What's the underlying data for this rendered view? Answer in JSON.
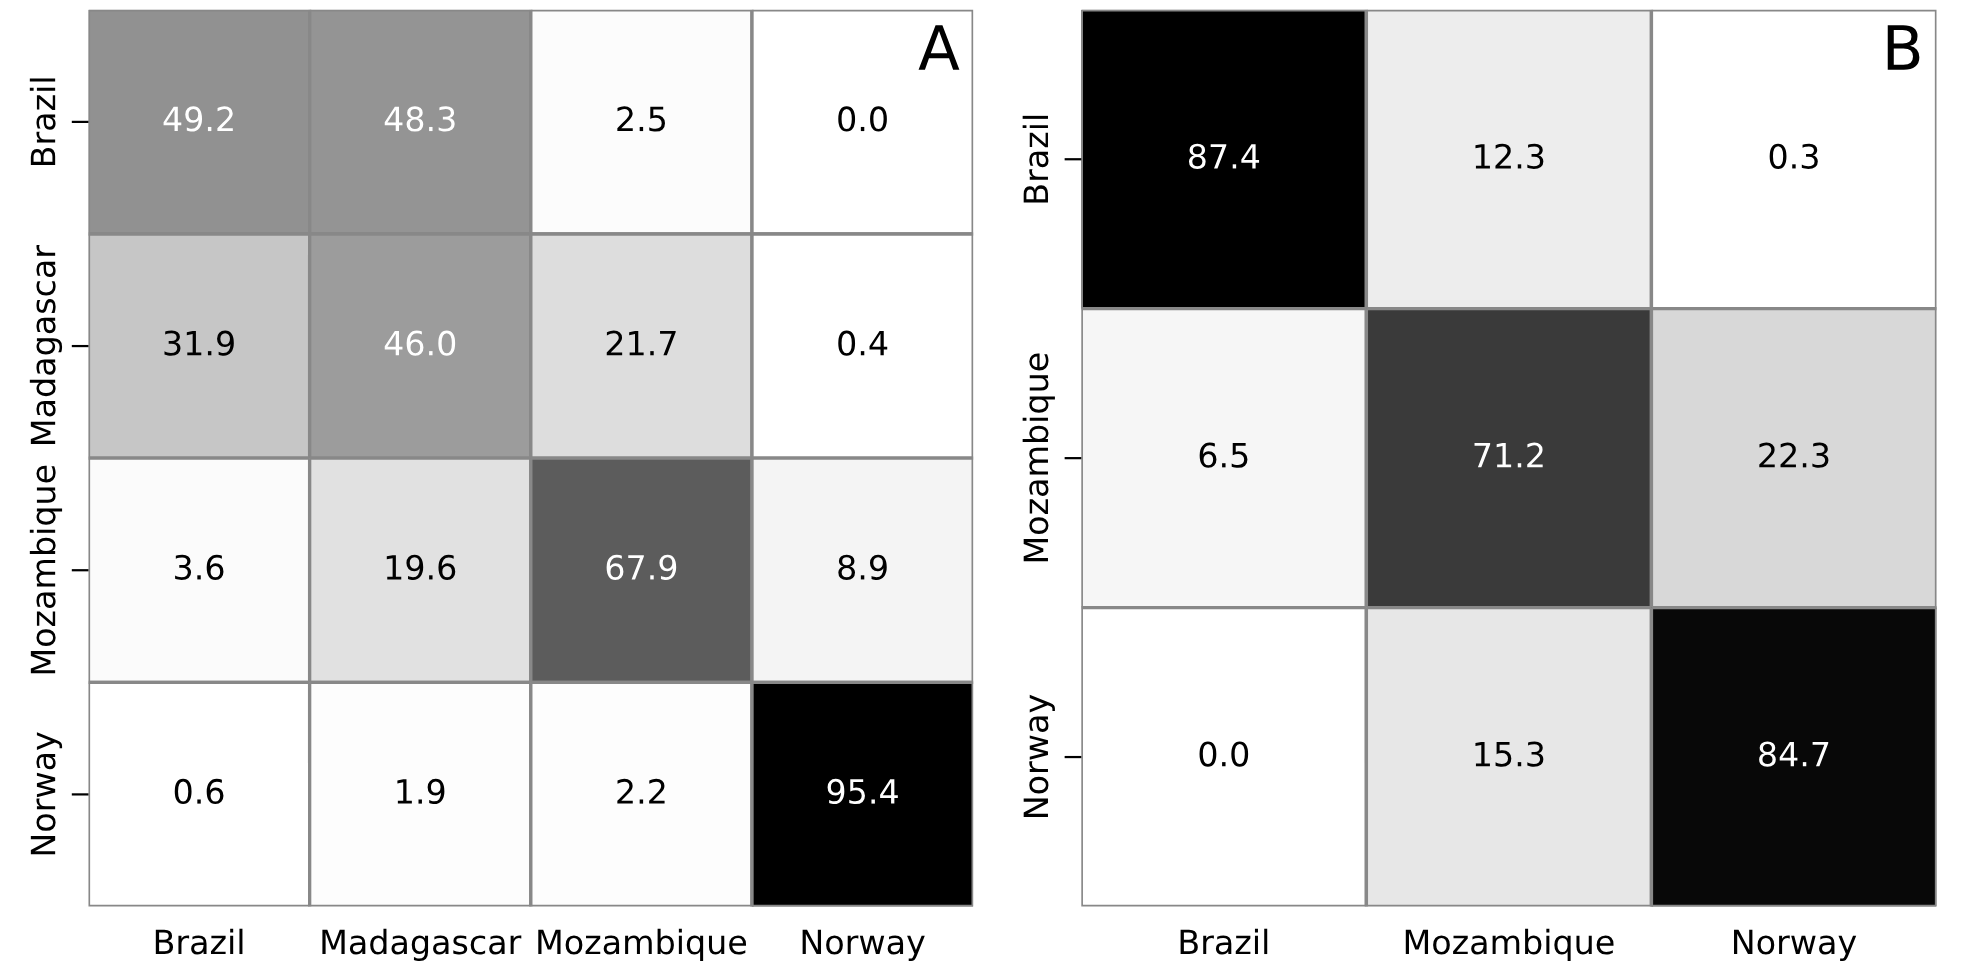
{
  "chart_data": [
    {
      "type": "heatmap",
      "annotations": [
        "A"
      ],
      "categories": [
        "Brazil",
        "Madagascar",
        "Mozambique",
        "Norway"
      ],
      "y_categories": [
        "Brazil",
        "Madagascar",
        "Mozambique",
        "Norway"
      ],
      "cells": [
        [
          49.2,
          48.3,
          2.5,
          0.0
        ],
        [
          31.9,
          46.0,
          21.7,
          0.4
        ],
        [
          3.6,
          19.6,
          67.9,
          8.9
        ],
        [
          0.6,
          1.9,
          2.2,
          95.4
        ]
      ],
      "cell_labels": [
        [
          "49.2",
          "48.3",
          "2.5",
          "0.0"
        ],
        [
          "31.9",
          "46.0",
          "21.7",
          "0.4"
        ],
        [
          "3.6",
          "19.6",
          "67.9",
          "8.9"
        ],
        [
          "0.6",
          "1.9",
          "2.2",
          "95.4"
        ]
      ]
    },
    {
      "type": "heatmap",
      "annotations": [
        "B"
      ],
      "categories": [
        "Brazil",
        "Mozambique",
        "Norway"
      ],
      "y_categories": [
        "Brazil",
        "Mozambique",
        "Norway"
      ],
      "cells": [
        [
          87.4,
          12.3,
          0.3
        ],
        [
          6.5,
          71.2,
          22.3
        ],
        [
          0.0,
          15.3,
          84.7
        ]
      ],
      "cell_labels": [
        [
          "87.4",
          "12.3",
          "0.3"
        ],
        [
          "6.5",
          "71.2",
          "22.3"
        ],
        [
          "0.0",
          "15.3",
          "84.7"
        ]
      ]
    }
  ]
}
